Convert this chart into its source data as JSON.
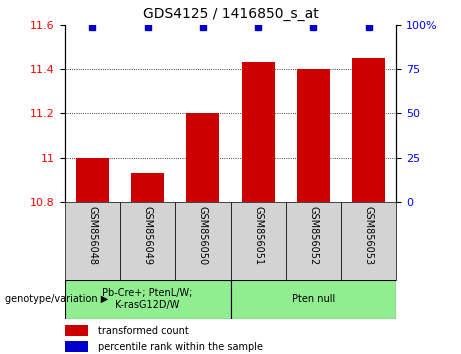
{
  "title": "GDS4125 / 1416850_s_at",
  "samples": [
    "GSM856048",
    "GSM856049",
    "GSM856050",
    "GSM856051",
    "GSM856052",
    "GSM856053"
  ],
  "bar_values": [
    11.0,
    10.93,
    11.2,
    11.43,
    11.4,
    11.45
  ],
  "percentile_values": [
    99,
    99,
    99,
    99,
    99,
    99
  ],
  "bar_bottom": 10.8,
  "bar_color": "#cc0000",
  "dot_color": "#0000cc",
  "ylim_left": [
    10.8,
    11.6
  ],
  "ylim_right": [
    0,
    100
  ],
  "yticks_left": [
    10.8,
    11.0,
    11.2,
    11.4,
    11.6
  ],
  "ytick_labels_left": [
    "10.8",
    "11",
    "11.2",
    "11.4",
    "11.6"
  ],
  "yticks_right": [
    0,
    25,
    50,
    75,
    100
  ],
  "ytick_labels_right": [
    "0",
    "25",
    "50",
    "75",
    "100%"
  ],
  "groups": [
    {
      "label": "Pb-Cre+; PtenL/W;\nK-rasG12D/W",
      "samples": [
        0,
        1,
        2
      ],
      "color": "#90ee90"
    },
    {
      "label": "Pten null",
      "samples": [
        3,
        4,
        5
      ],
      "color": "#90ee90"
    }
  ],
  "group_label_prefix": "genotype/variation",
  "legend_items": [
    {
      "label": "transformed count",
      "color": "#cc0000"
    },
    {
      "label": "percentile rank within the sample",
      "color": "#0000cc"
    }
  ],
  "sample_bg_color": "#d3d3d3",
  "bar_width": 0.6
}
